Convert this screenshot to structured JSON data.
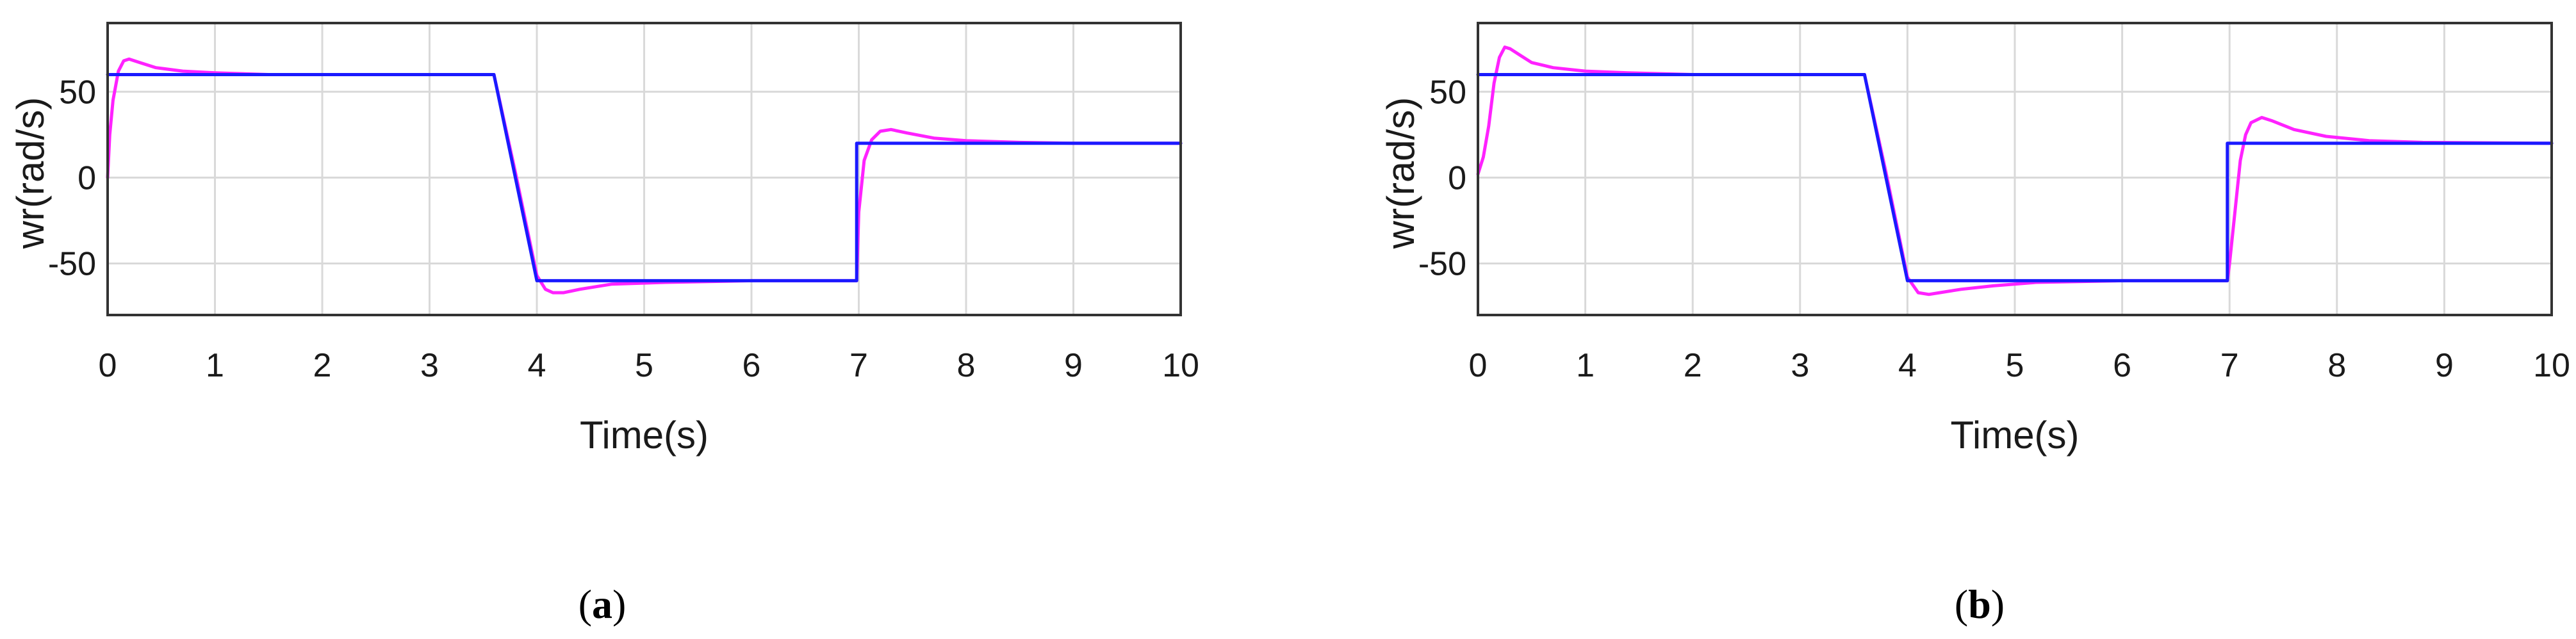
{
  "colors": {
    "reference": "#1a1aff",
    "response": "#ff22ff",
    "grid": "#d9d9d9",
    "axis": "#333333"
  },
  "chart_data": [
    {
      "type": "line",
      "panel_label": "a",
      "caption_open": "(",
      "caption_close": ")",
      "xlabel": "Time(s)",
      "ylabel": "wr(rad/s)",
      "xlim": [
        0,
        10
      ],
      "ylim": [
        -80,
        90
      ],
      "xticks": [
        0,
        1,
        2,
        3,
        4,
        5,
        6,
        7,
        8,
        9,
        10
      ],
      "yticks": [
        -50,
        0,
        50
      ],
      "grid": true,
      "series": [
        {
          "color_key": "reference",
          "x": [
            0,
            3.6,
            4.0,
            6.98,
            6.98,
            10
          ],
          "y": [
            60,
            60,
            -60,
            -60,
            20,
            20
          ]
        },
        {
          "color_key": "response",
          "x": [
            0,
            0.02,
            0.05,
            0.1,
            0.15,
            0.2,
            0.3,
            0.45,
            0.7,
            1.0,
            1.5,
            2.5,
            3.6,
            3.8,
            4.0,
            4.08,
            4.15,
            4.25,
            4.4,
            4.7,
            5.2,
            6.0,
            6.98,
            7.0,
            7.05,
            7.12,
            7.2,
            7.3,
            7.45,
            7.7,
            8.0,
            8.5,
            9.0,
            10
          ],
          "y": [
            0,
            25,
            45,
            62,
            68,
            69,
            67,
            64,
            62,
            61,
            60,
            60,
            60,
            3,
            -57,
            -65,
            -67,
            -67,
            -65,
            -62,
            -61,
            -60,
            -60,
            -20,
            10,
            22,
            27,
            28,
            26,
            23,
            21.5,
            20.5,
            20,
            20
          ]
        }
      ]
    },
    {
      "type": "line",
      "panel_label": "b",
      "caption_open": "(",
      "caption_close": ")",
      "xlabel": "Time(s)",
      "ylabel": "wr(rad/s)",
      "xlim": [
        0,
        10
      ],
      "ylim": [
        -80,
        90
      ],
      "xticks": [
        0,
        1,
        2,
        3,
        4,
        5,
        6,
        7,
        8,
        9,
        10
      ],
      "yticks": [
        -50,
        0,
        50
      ],
      "grid": true,
      "series": [
        {
          "color_key": "reference",
          "x": [
            0,
            3.6,
            4.0,
            6.98,
            6.98,
            10
          ],
          "y": [
            60,
            60,
            -60,
            -60,
            20,
            20
          ]
        },
        {
          "color_key": "response",
          "x": [
            0,
            0.05,
            0.1,
            0.15,
            0.2,
            0.25,
            0.3,
            0.4,
            0.5,
            0.7,
            1.0,
            1.4,
            2.0,
            3.6,
            3.8,
            4.0,
            4.1,
            4.2,
            4.3,
            4.5,
            4.8,
            5.2,
            6.0,
            6.98,
            7.0,
            7.05,
            7.1,
            7.15,
            7.2,
            7.3,
            7.4,
            7.6,
            7.9,
            8.3,
            8.8,
            10
          ],
          "y": [
            2,
            12,
            30,
            55,
            70,
            76,
            75,
            71,
            67,
            64,
            62,
            61,
            60,
            60,
            3,
            -58,
            -67,
            -68,
            -67,
            -65,
            -63,
            -61,
            -60,
            -60,
            -50,
            -20,
            10,
            25,
            32,
            35,
            33,
            28,
            24,
            21.5,
            20.5,
            20
          ]
        }
      ]
    }
  ]
}
